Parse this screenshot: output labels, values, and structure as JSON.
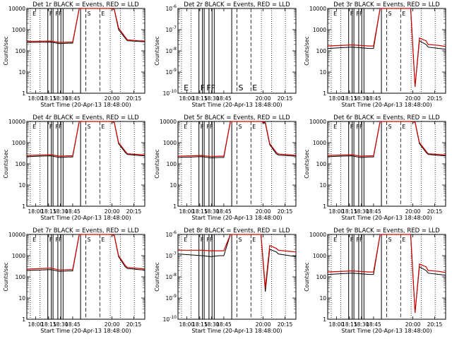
{
  "chart_data": [
    {
      "type": "line",
      "title": "Det 1r BLACK = Events, RED = LLD",
      "xlabel": "Start Time (20-Apr-13 18:48:00)",
      "ylabel": "Counts/sec",
      "yscale": "log",
      "xlim": [
        17.85,
        20.55
      ],
      "ylim": [
        1,
        10000
      ],
      "xticks": [
        "18:00",
        "18:15",
        "18:30",
        "18:45",
        "20:00",
        "20:15"
      ],
      "yticklabels": [
        "1",
        "10",
        "100",
        "1000",
        "10000"
      ],
      "event_letters": [
        "E",
        "F",
        "FF",
        "S",
        "E"
      ],
      "series": [
        {
          "color": "#000000",
          "x": [
            17.85,
            18.4,
            18.6,
            18.8,
            18.9,
            19.05,
            19.3,
            19.55,
            19.75,
            19.85,
            19.95,
            20.1,
            20.15,
            20.4,
            20.55
          ],
          "y": [
            250,
            260,
            220,
            230,
            230,
            10000,
            10000,
            10000,
            10000,
            9000,
            1000,
            400,
            300,
            280,
            270
          ]
        },
        {
          "color": "#d00000",
          "x": [
            17.85,
            18.4,
            18.6,
            18.8,
            18.9,
            19.05,
            19.3,
            19.55,
            19.75,
            19.85,
            19.95,
            20.1,
            20.15,
            20.4,
            20.55
          ],
          "y": [
            280,
            290,
            250,
            260,
            260,
            10000,
            10000,
            10000,
            10000,
            9500,
            1200,
            450,
            330,
            300,
            290
          ]
        }
      ]
    },
    {
      "type": "line",
      "title": "Det 2r BLACK = Events, RED = LLD",
      "xlabel": "Start Time (20-Apr-13 18:48:00)",
      "ylabel": "Counts/sec",
      "yscale": "log",
      "xlim": [
        17.85,
        20.55
      ],
      "ylim": [
        1e-10,
        1e-06
      ],
      "xticks": [
        "18:00",
        "18:15",
        "18:30",
        "18:45",
        "20:00",
        "20:15"
      ],
      "yticklabels": [
        "10^-10",
        "10^-9",
        "10^-8",
        "10^-7",
        "10^-6"
      ],
      "event_letters": [
        "E",
        "F",
        "FF",
        "S",
        "E"
      ],
      "series": []
    },
    {
      "type": "line",
      "title": "Det 3r BLACK = Events, RED = LLD",
      "xlabel": "Start Time (20-Apr-13 18:48:00)",
      "ylabel": "Counts/sec",
      "yscale": "log",
      "xlim": [
        17.85,
        20.55
      ],
      "ylim": [
        1,
        10000
      ],
      "xticks": [
        "18:00",
        "18:15",
        "18:30",
        "18:45",
        "20:00",
        "20:15"
      ],
      "yticklabels": [
        "1",
        "10",
        "100",
        "1000",
        "10000"
      ],
      "event_letters": [
        "E",
        "F",
        "FF",
        "S",
        "E"
      ],
      "series": [
        {
          "color": "#000000",
          "x": [
            17.85,
            18.4,
            18.6,
            18.8,
            18.9,
            19.05,
            19.3,
            19.55,
            19.75,
            19.85,
            19.95,
            20.1,
            20.15,
            20.4,
            20.55
          ],
          "y": [
            130,
            150,
            140,
            130,
            130,
            10000,
            10000,
            10000,
            10000,
            2,
            300,
            200,
            150,
            130,
            120
          ]
        },
        {
          "color": "#d00000",
          "x": [
            17.85,
            18.4,
            18.6,
            18.8,
            18.9,
            19.05,
            19.3,
            19.55,
            19.75,
            19.85,
            19.95,
            20.1,
            20.15,
            20.4,
            20.55
          ],
          "y": [
            170,
            190,
            180,
            170,
            170,
            10000,
            10000,
            10000,
            10000,
            2,
            400,
            300,
            200,
            180,
            160
          ]
        }
      ]
    },
    {
      "type": "line",
      "title": "Det 4r BLACK = Events, RED = LLD",
      "xlabel": "Start Time (20-Apr-13 18:48:00)",
      "ylabel": "Counts/sec",
      "yscale": "log",
      "xlim": [
        17.85,
        20.55
      ],
      "ylim": [
        1,
        10000
      ],
      "xticks": [
        "18:00",
        "18:15",
        "18:30",
        "18:45",
        "20:00",
        "20:15"
      ],
      "yticklabels": [
        "1",
        "10",
        "100",
        "1000",
        "10000"
      ],
      "event_letters": [
        "E",
        "F",
        "FF",
        "S",
        "E"
      ],
      "series": [
        {
          "color": "#000000",
          "x": [
            17.85,
            18.4,
            18.6,
            18.8,
            18.9,
            19.05,
            19.3,
            19.55,
            19.75,
            19.85,
            19.95,
            20.1,
            20.15,
            20.4,
            20.55
          ],
          "y": [
            220,
            240,
            200,
            210,
            210,
            10000,
            10000,
            10000,
            10000,
            9000,
            900,
            350,
            280,
            250,
            240
          ]
        },
        {
          "color": "#d00000",
          "x": [
            17.85,
            18.4,
            18.6,
            18.8,
            18.9,
            19.05,
            19.3,
            19.55,
            19.75,
            19.85,
            19.95,
            20.1,
            20.15,
            20.4,
            20.55
          ],
          "y": [
            250,
            270,
            230,
            240,
            240,
            10000,
            10000,
            10000,
            10000,
            9500,
            1000,
            400,
            300,
            280,
            260
          ]
        }
      ]
    },
    {
      "type": "line",
      "title": "Det 5r BLACK = Events, RED = LLD",
      "xlabel": "Start Time (20-Apr-13 18:48:00)",
      "ylabel": "Counts/sec",
      "yscale": "log",
      "xlim": [
        17.85,
        20.55
      ],
      "ylim": [
        1,
        10000
      ],
      "xticks": [
        "18:00",
        "18:15",
        "18:30",
        "18:45",
        "20:00",
        "20:15"
      ],
      "yticklabels": [
        "1",
        "10",
        "100",
        "1000",
        "10000"
      ],
      "event_letters": [
        "E",
        "F",
        "FF",
        "S",
        "E"
      ],
      "series": [
        {
          "color": "#000000",
          "x": [
            17.85,
            18.4,
            18.6,
            18.8,
            18.9,
            19.05,
            19.3,
            19.55,
            19.75,
            19.85,
            19.95,
            20.1,
            20.15,
            20.4,
            20.55
          ],
          "y": [
            200,
            220,
            190,
            200,
            200,
            10000,
            10000,
            10000,
            10000,
            8000,
            800,
            300,
            260,
            240,
            230
          ]
        },
        {
          "color": "#d00000",
          "x": [
            17.85,
            18.4,
            18.6,
            18.8,
            18.9,
            19.05,
            19.3,
            19.55,
            19.75,
            19.85,
            19.95,
            20.1,
            20.15,
            20.4,
            20.55
          ],
          "y": [
            230,
            250,
            220,
            230,
            230,
            10000,
            10000,
            10000,
            10000,
            9000,
            900,
            350,
            290,
            270,
            250
          ]
        }
      ]
    },
    {
      "type": "line",
      "title": "Det 6r BLACK = Events, RED = LLD",
      "xlabel": "Start Time (20-Apr-13 18:48:00)",
      "ylabel": "Counts/sec",
      "yscale": "log",
      "xlim": [
        17.85,
        20.55
      ],
      "ylim": [
        1,
        10000
      ],
      "xticks": [
        "18:00",
        "18:15",
        "18:30",
        "18:45",
        "20:00",
        "20:15"
      ],
      "yticklabels": [
        "1",
        "10",
        "100",
        "1000",
        "10000"
      ],
      "event_letters": [
        "E",
        "F",
        "FF",
        "S",
        "E"
      ],
      "series": [
        {
          "color": "#000000",
          "x": [
            17.85,
            18.4,
            18.6,
            18.8,
            18.9,
            19.05,
            19.3,
            19.55,
            19.75,
            19.85,
            19.95,
            20.1,
            20.15,
            20.4,
            20.55
          ],
          "y": [
            220,
            240,
            200,
            210,
            210,
            10000,
            10000,
            10000,
            10000,
            9000,
            900,
            350,
            280,
            250,
            240
          ]
        },
        {
          "color": "#d00000",
          "x": [
            17.85,
            18.4,
            18.6,
            18.8,
            18.9,
            19.05,
            19.3,
            19.55,
            19.75,
            19.85,
            19.95,
            20.1,
            20.15,
            20.4,
            20.55
          ],
          "y": [
            250,
            270,
            230,
            240,
            240,
            10000,
            10000,
            10000,
            10000,
            9500,
            1000,
            400,
            300,
            280,
            260
          ]
        }
      ]
    },
    {
      "type": "line",
      "title": "Det 7r BLACK = Events, RED = LLD",
      "xlabel": "Start Time (20-Apr-13 18:48:00)",
      "ylabel": "Counts/sec",
      "yscale": "log",
      "xlim": [
        17.85,
        20.55
      ],
      "ylim": [
        1,
        10000
      ],
      "xticks": [
        "18:00",
        "18:15",
        "18:30",
        "18:45",
        "20:00",
        "20:15"
      ],
      "yticklabels": [
        "1",
        "10",
        "100",
        "1000",
        "10000"
      ],
      "event_letters": [
        "E",
        "F",
        "FF",
        "S",
        "E"
      ],
      "series": [
        {
          "color": "#000000",
          "x": [
            17.85,
            18.4,
            18.6,
            18.8,
            18.9,
            19.05,
            19.3,
            19.55,
            19.75,
            19.85,
            19.95,
            20.1,
            20.15,
            20.4,
            20.55
          ],
          "y": [
            200,
            220,
            180,
            190,
            190,
            10000,
            10000,
            10000,
            10000,
            9000,
            900,
            300,
            250,
            220,
            210
          ]
        },
        {
          "color": "#d00000",
          "x": [
            17.85,
            18.4,
            18.6,
            18.8,
            18.9,
            19.05,
            19.3,
            19.55,
            19.75,
            19.85,
            19.95,
            20.1,
            20.15,
            20.4,
            20.55
          ],
          "y": [
            230,
            260,
            210,
            220,
            220,
            10000,
            10000,
            10000,
            10000,
            9500,
            1000,
            350,
            280,
            250,
            240
          ]
        }
      ]
    },
    {
      "type": "line",
      "title": "Det 8r BLACK = Events, RED = LLD",
      "xlabel": "Start Time (20-Apr-13 18:48:00)",
      "ylabel": "Counts/sec",
      "yscale": "log",
      "xlim": [
        17.85,
        20.55
      ],
      "ylim": [
        1e-10,
        1e-06
      ],
      "xticks": [
        "18:00",
        "18:15",
        "18:30",
        "18:45",
        "20:00",
        "20:15"
      ],
      "yticklabels": [
        "10^-10",
        "10^-9",
        "10^-8",
        "10^-7",
        "10^-6"
      ],
      "event_letters": [
        "E",
        "F",
        "FF",
        "S",
        "E"
      ],
      "series": [
        {
          "color": "#000000",
          "x": [
            17.85,
            18.4,
            18.6,
            18.8,
            18.9,
            19.05,
            19.3,
            19.55,
            19.75,
            19.85,
            19.95,
            20.1,
            20.15,
            20.4,
            20.55
          ],
          "y": [
            1.2e-07,
            1e-07,
            9e-08,
            1e-07,
            1e-07,
            1e-06,
            1e-06,
            1e-06,
            1e-06,
            2e-09,
            2e-07,
            1.5e-07,
            1.2e-07,
            1e-07,
            9e-08
          ]
        },
        {
          "color": "#d00000",
          "x": [
            17.85,
            18.4,
            18.6,
            18.8,
            18.9,
            19.05,
            19.3,
            19.55,
            19.75,
            19.85,
            19.95,
            20.1,
            20.15,
            20.4,
            20.55
          ],
          "y": [
            1.8e-07,
            1.8e-07,
            1.7e-07,
            1.7e-07,
            1.7e-07,
            1e-06,
            1e-06,
            1e-06,
            1e-06,
            3e-09,
            3e-07,
            2.2e-07,
            1.8e-07,
            1.6e-07,
            1.5e-07
          ]
        }
      ]
    },
    {
      "type": "line",
      "title": "Det 9r BLACK = Events, RED = LLD",
      "xlabel": "Start Time (20-Apr-13 18:48:00)",
      "ylabel": "Counts/sec",
      "yscale": "log",
      "xlim": [
        17.85,
        20.55
      ],
      "ylim": [
        1,
        10000
      ],
      "xticks": [
        "18:00",
        "18:15",
        "18:30",
        "18:45",
        "20:00",
        "20:15"
      ],
      "yticklabels": [
        "1",
        "10",
        "100",
        "1000",
        "10000"
      ],
      "event_letters": [
        "E",
        "F",
        "FF",
        "S",
        "E"
      ],
      "series": [
        {
          "color": "#000000",
          "x": [
            17.85,
            18.4,
            18.6,
            18.8,
            18.9,
            19.05,
            19.3,
            19.55,
            19.75,
            19.85,
            19.95,
            20.1,
            20.15,
            20.4,
            20.55
          ],
          "y": [
            130,
            150,
            140,
            130,
            130,
            10000,
            10000,
            10000,
            10000,
            2,
            300,
            200,
            150,
            130,
            120
          ]
        },
        {
          "color": "#d00000",
          "x": [
            17.85,
            18.4,
            18.6,
            18.8,
            18.9,
            19.05,
            19.3,
            19.55,
            19.75,
            19.85,
            19.95,
            20.1,
            20.15,
            20.4,
            20.55
          ],
          "y": [
            170,
            190,
            180,
            170,
            170,
            10000,
            10000,
            10000,
            10000,
            2,
            400,
            300,
            200,
            180,
            160
          ]
        }
      ]
    }
  ]
}
